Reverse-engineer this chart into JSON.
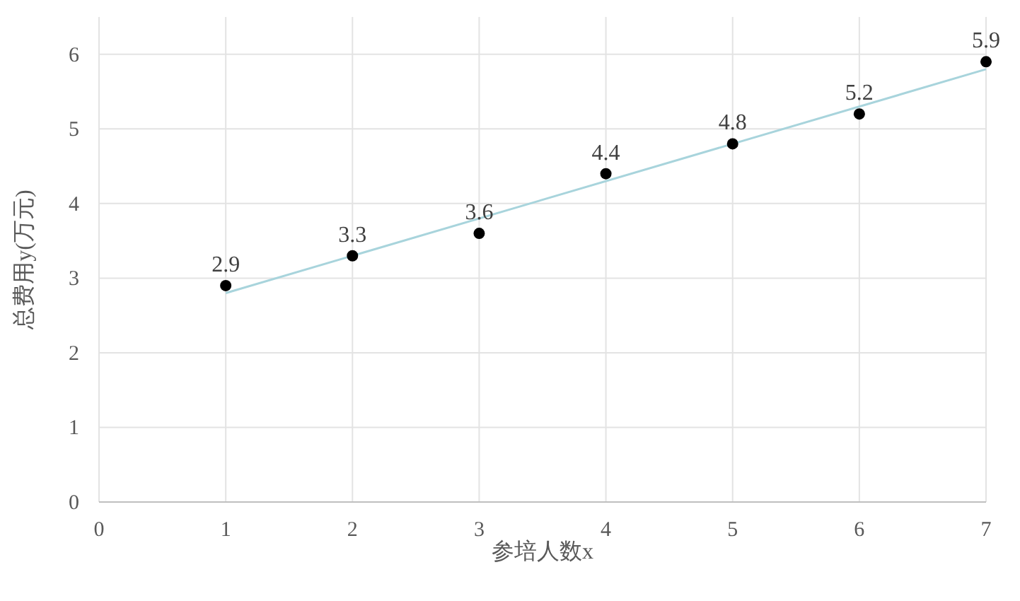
{
  "chart_data": {
    "type": "scatter",
    "xlabel": "参培人数x",
    "ylabel": "总费用y(万元)",
    "xlim": [
      0,
      7
    ],
    "xticks": [
      0,
      1,
      2,
      3,
      4,
      5,
      6,
      7
    ],
    "ylim": [
      0,
      6.5
    ],
    "yticks": [
      0,
      1,
      2,
      3,
      4,
      5,
      6
    ],
    "grid": true,
    "marker": "circle",
    "series": [
      {
        "type": "line",
        "color": "#a8d4dc",
        "x": [
          1,
          7
        ],
        "values": [
          2.8,
          5.8
        ],
        "marker": "none"
      },
      {
        "color": "#000000",
        "x": [
          1,
          2,
          3,
          4,
          5,
          6,
          7
        ],
        "values": [
          2.9,
          3.3,
          3.6,
          4.4,
          4.8,
          5.2,
          5.9
        ],
        "value_labels": [
          "2.9",
          "3.3",
          "3.6",
          "4.4",
          "4.8",
          "5.2",
          "5.9"
        ]
      }
    ]
  }
}
